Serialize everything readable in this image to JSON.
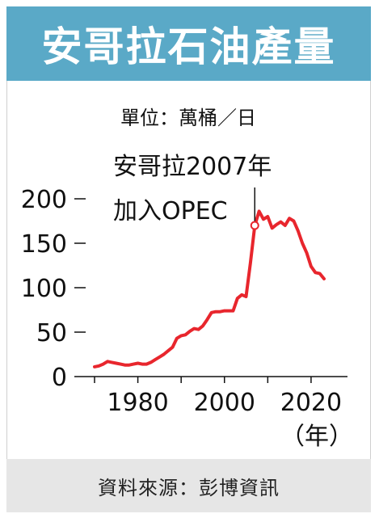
{
  "title": "安哥拉石油產量",
  "unit": "單位：萬桶／日",
  "source": "資料來源：彭博資訊",
  "colors": {
    "header_bg": "#5aa9c7",
    "line": "#e8262d",
    "footer_bg": "#e6e6e6"
  },
  "chart_data": {
    "type": "line",
    "title": "安哥拉石油產量",
    "ylabel": "單位：萬桶／日",
    "xlabel": "（年）",
    "xlim": [
      1965,
      2025
    ],
    "ylim": [
      0,
      200
    ],
    "y_ticks": [
      "0",
      "50",
      "100",
      "150",
      "200"
    ],
    "x_ticks": [
      "1980",
      "2000",
      "2020"
    ],
    "y_tick_values": [
      0,
      50,
      100,
      150,
      200
    ],
    "x_tick_values": [
      1980,
      2000,
      2020
    ],
    "x_unit": "（年）",
    "grid": false,
    "series": [
      {
        "color": "#e8262d",
        "x": [
          1970,
          1971,
          1972,
          1973,
          1974,
          1975,
          1976,
          1977,
          1978,
          1979,
          1980,
          1981,
          1982,
          1983,
          1984,
          1985,
          1986,
          1987,
          1988,
          1989,
          1990,
          1991,
          1992,
          1993,
          1994,
          1995,
          1996,
          1997,
          1998,
          1999,
          2000,
          2001,
          2002,
          2003,
          2004,
          2005,
          2006,
          2007,
          2008,
          2009,
          2010,
          2011,
          2012,
          2013,
          2014,
          2015,
          2016,
          2017,
          2018,
          2019,
          2020,
          2021,
          2022,
          2023
        ],
        "values": [
          11,
          12,
          14,
          17,
          16,
          15,
          14,
          13,
          13,
          14,
          15,
          14,
          14,
          16,
          19,
          22,
          25,
          29,
          33,
          43,
          46,
          47,
          51,
          54,
          53,
          57,
          64,
          72,
          73,
          73,
          74,
          74,
          74,
          88,
          92,
          90,
          128,
          170,
          186,
          177,
          180,
          167,
          171,
          174,
          170,
          178,
          175,
          164,
          150,
          139,
          124,
          117,
          116,
          110
        ]
      }
    ],
    "annotations": [
      {
        "text": "安哥拉2007年",
        "x": 2007,
        "y": 170
      },
      {
        "text": "加入OPEC",
        "x": 2007,
        "y": 170
      }
    ]
  }
}
